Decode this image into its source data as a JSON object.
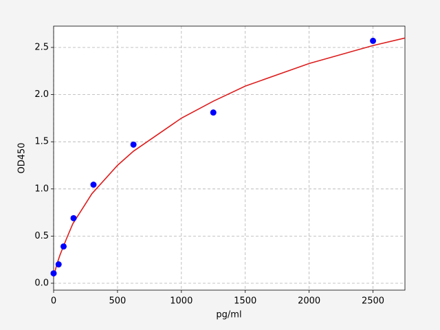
{
  "chart_data": {
    "type": "scatter",
    "xlabel": "pg/ml",
    "ylabel": "OD450",
    "xlim": [
      0,
      2750
    ],
    "ylim": [
      -0.073,
      2.726
    ],
    "xticks": [
      0,
      500,
      1000,
      1500,
      2000,
      2500
    ],
    "yticks": [
      {
        "value": 0,
        "label": "0.0"
      },
      0.5,
      {
        "value": 1,
        "label": "1.0"
      },
      1.5,
      {
        "value": 2,
        "label": "2.0"
      },
      2.5
    ],
    "grid": true,
    "series": [
      {
        "style": "points",
        "color": "#0000ff",
        "x": [
          0,
          39,
          78,
          156,
          312,
          625,
          1250,
          2500
        ],
        "values": [
          0.105,
          0.2,
          0.39,
          0.69,
          1.045,
          1.47,
          1.81,
          2.57
        ]
      },
      {
        "style": "line",
        "color": "#dd1c1c",
        "x": [
          0,
          25,
          50,
          100,
          150,
          300,
          500,
          625,
          1000,
          1250,
          1500,
          2000,
          2500,
          2750
        ],
        "values": [
          0.07,
          0.2,
          0.3,
          0.47,
          0.63,
          0.95,
          1.25,
          1.4,
          1.75,
          1.93,
          2.09,
          2.33,
          2.52,
          2.6
        ]
      }
    ]
  }
}
